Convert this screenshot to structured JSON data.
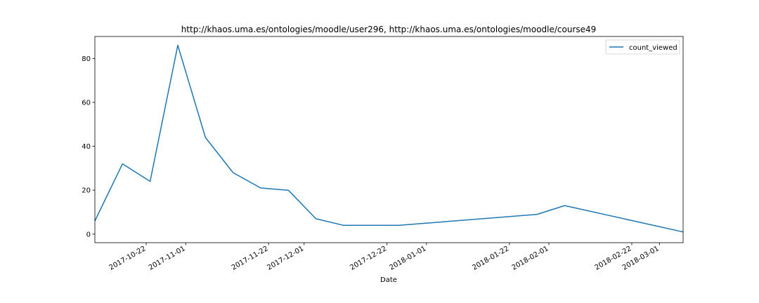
{
  "chart_data": {
    "type": "line",
    "title": "http://khaos.uma.es/ontologies/moodle/user296, http://khaos.uma.es/ontologies/moodle/course49",
    "xlabel": "Date",
    "ylabel": "",
    "x_type": "date",
    "xlim": [
      "2017-10-09",
      "2018-03-07"
    ],
    "ylim": [
      -3.9,
      90.0
    ],
    "x_ticks": [
      "2017-10-22",
      "2017-11-01",
      "2017-11-22",
      "2017-12-01",
      "2017-12-22",
      "2018-01-01",
      "2018-01-22",
      "2018-02-01",
      "2018-02-22",
      "2018-03-01"
    ],
    "y_ticks": [
      0,
      20,
      40,
      60,
      80
    ],
    "legend": {
      "position": "top-right"
    },
    "grid": false,
    "series": [
      {
        "name": "count_viewed",
        "color": "#1f77b4",
        "x": [
          "2017-10-09",
          "2017-10-16",
          "2017-10-23",
          "2017-10-30",
          "2017-11-06",
          "2017-11-13",
          "2017-11-20",
          "2017-11-27",
          "2017-12-04",
          "2017-12-11",
          "2017-12-25",
          "2018-01-29",
          "2018-02-05",
          "2018-03-07"
        ],
        "values": [
          6,
          32,
          24,
          86,
          44,
          28,
          21,
          20,
          7,
          4,
          4,
          9,
          13,
          1
        ]
      }
    ]
  }
}
